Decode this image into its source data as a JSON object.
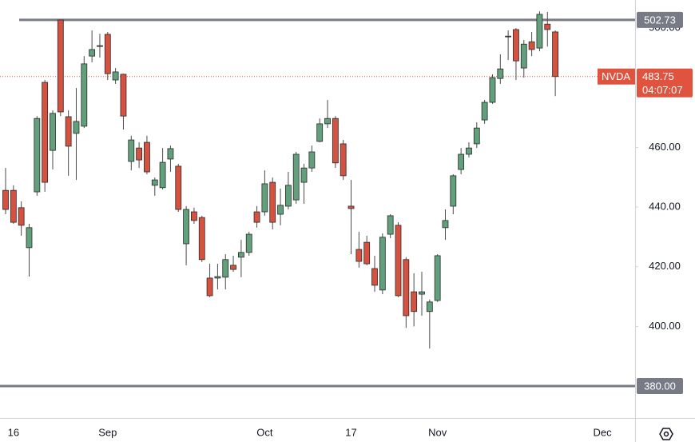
{
  "chart_data": {
    "type": "candlestick",
    "categories": [
      null,
      "16",
      null,
      null,
      null,
      null,
      null,
      null,
      null,
      null,
      null,
      null,
      null,
      "Sep",
      null,
      null,
      null,
      null,
      null,
      null,
      null,
      null,
      null,
      null,
      null,
      null,
      null,
      null,
      null,
      null,
      null,
      null,
      null,
      "Oct",
      null,
      null,
      null,
      null,
      null,
      null,
      null,
      null,
      null,
      null,
      "17",
      null,
      null,
      null,
      null,
      null,
      null,
      null,
      null,
      null,
      null,
      "Nov",
      null,
      null,
      null,
      null,
      null,
      null,
      null,
      null,
      null,
      null,
      null,
      null,
      null,
      null,
      null,
      null,
      null,
      null,
      null,
      null,
      "Dec",
      null,
      null,
      null
    ],
    "open": [
      445.6,
      445.6,
      439.8,
      426.4,
      445.1,
      481.8,
      459,
      502.7,
      470.3,
      464.7,
      467.1,
      490.6,
      494.1,
      497.9,
      482.6,
      484.5,
      455.3,
      459.8,
      461.7,
      447.3,
      446.5,
      456.1,
      453.7,
      427.7,
      438.4,
      436.5,
      416.2,
      416.2,
      416.5,
      420.5,
      423.2,
      424.8,
      438.4,
      438.4,
      448.3,
      437.6,
      440.3,
      442.4,
      448.3,
      453.1,
      462,
      467.9,
      469.7,
      461.2,
      440.3,
      425.8,
      428.2,
      419.4,
      412.2,
      430.9,
      433.9,
      422.4,
      411.6,
      410.8,
      405,
      408.7,
      433.1,
      440.3,
      452.6,
      457.7,
      461.2,
      469.2,
      475.1,
      483.1,
      497.3,
      499.5,
      486.6,
      495.4,
      493.3,
      501.3,
      498.7,
      null,
      null,
      null,
      null,
      null,
      null,
      null,
      null,
      null
    ],
    "high": [
      453.1,
      447.3,
      441.9,
      434.4,
      470.5,
      482.6,
      472.4,
      502.7,
      472.4,
      479.9,
      490.6,
      499.2,
      498.1,
      498.7,
      486.6,
      484.7,
      463.9,
      461.7,
      463.9,
      449.9,
      459.8,
      460.6,
      454.5,
      440.3,
      439.8,
      437.1,
      421,
      421,
      424.2,
      423.7,
      429,
      431.7,
      440.3,
      452.3,
      449.9,
      446.2,
      451.8,
      458.5,
      454.5,
      460.6,
      469.7,
      475.9,
      470.5,
      462.5,
      449.1,
      431.7,
      430.4,
      423.7,
      431.2,
      437.6,
      434.9,
      423.2,
      417.8,
      418.3,
      409,
      424.2,
      439.2,
      451,
      459.8,
      461.7,
      468.4,
      475.9,
      484.5,
      491.2,
      499.2,
      500,
      496,
      498.7,
      505.6,
      505.4,
      499.2,
      null,
      null,
      null,
      null,
      null,
      null,
      null,
      null,
      null
    ],
    "low": [
      437.6,
      434.4,
      430.4,
      416.7,
      443.8,
      445.1,
      452.6,
      470.5,
      450.5,
      449.1,
      466.5,
      488.5,
      490.1,
      482.6,
      481.3,
      466,
      452.3,
      453.1,
      451,
      443.8,
      445.9,
      451.8,
      438.4,
      420.5,
      434.4,
      421.6,
      409.8,
      412.4,
      412.4,
      418.3,
      416.5,
      423.7,
      433.1,
      437.1,
      432.5,
      433.9,
      439.2,
      441.1,
      441.1,
      451.8,
      461.7,
      466.5,
      453.1,
      449.1,
      424.2,
      419.7,
      420.5,
      411.6,
      410.8,
      429.6,
      409.8,
      399.5,
      400,
      403.6,
      392.6,
      408.2,
      429,
      437.6,
      451,
      456.6,
      459.8,
      467.9,
      474.6,
      481.3,
      489.3,
      482.6,
      483.4,
      490.6,
      492.2,
      493.8,
      477.2,
      null,
      null,
      null,
      null,
      null,
      null,
      null,
      null,
      null
    ],
    "close": [
      439.2,
      434.9,
      433.9,
      433.1,
      469.7,
      448.3,
      471.4,
      471.9,
      460.4,
      468.7,
      488,
      492.8,
      494.1,
      484.7,
      485.3,
      470.5,
      462.5,
      455.8,
      451.8,
      449.1,
      455,
      459.6,
      439.2,
      439.2,
      435.5,
      422.4,
      410.3,
      416.7,
      422.4,
      419.1,
      424.8,
      430.9,
      434.9,
      447.8,
      434.9,
      440.6,
      447.3,
      457.7,
      453.1,
      458.5,
      467.9,
      469.7,
      454.8,
      450.5,
      439.5,
      421.8,
      421,
      413.8,
      429.9,
      437.1,
      410.3,
      403.6,
      405,
      411.6,
      408.2,
      423.7,
      435.5,
      450.5,
      457.7,
      459.8,
      466.5,
      475.1,
      483.4,
      486.3,
      497.3,
      489,
      494.6,
      492.8,
      504.6,
      499.5,
      483.75,
      null,
      null,
      null,
      null,
      null,
      null,
      null,
      null,
      null
    ],
    "up_color": "#62a07c",
    "down_color": "#d4523f",
    "ylim": [
      369.3,
      509.4
    ],
    "yticks": [
      {
        "value": 400,
        "label": "400.00"
      },
      {
        "value": 420,
        "label": "420.00"
      },
      {
        "value": 440,
        "label": "440.00"
      },
      {
        "value": 460,
        "label": "460.00"
      },
      {
        "value": 500,
        "label": "500.00"
      }
    ],
    "horizontal_lines": [
      {
        "value": 502.73,
        "label": "502.73",
        "color": "#787b86"
      },
      {
        "value": 380,
        "label": "380.00",
        "color": "#787b86"
      }
    ],
    "last_price": {
      "symbol": "NVDA",
      "value": 483.75,
      "label": "483.75",
      "countdown": "04:07:07",
      "color": "#e0533f"
    }
  }
}
